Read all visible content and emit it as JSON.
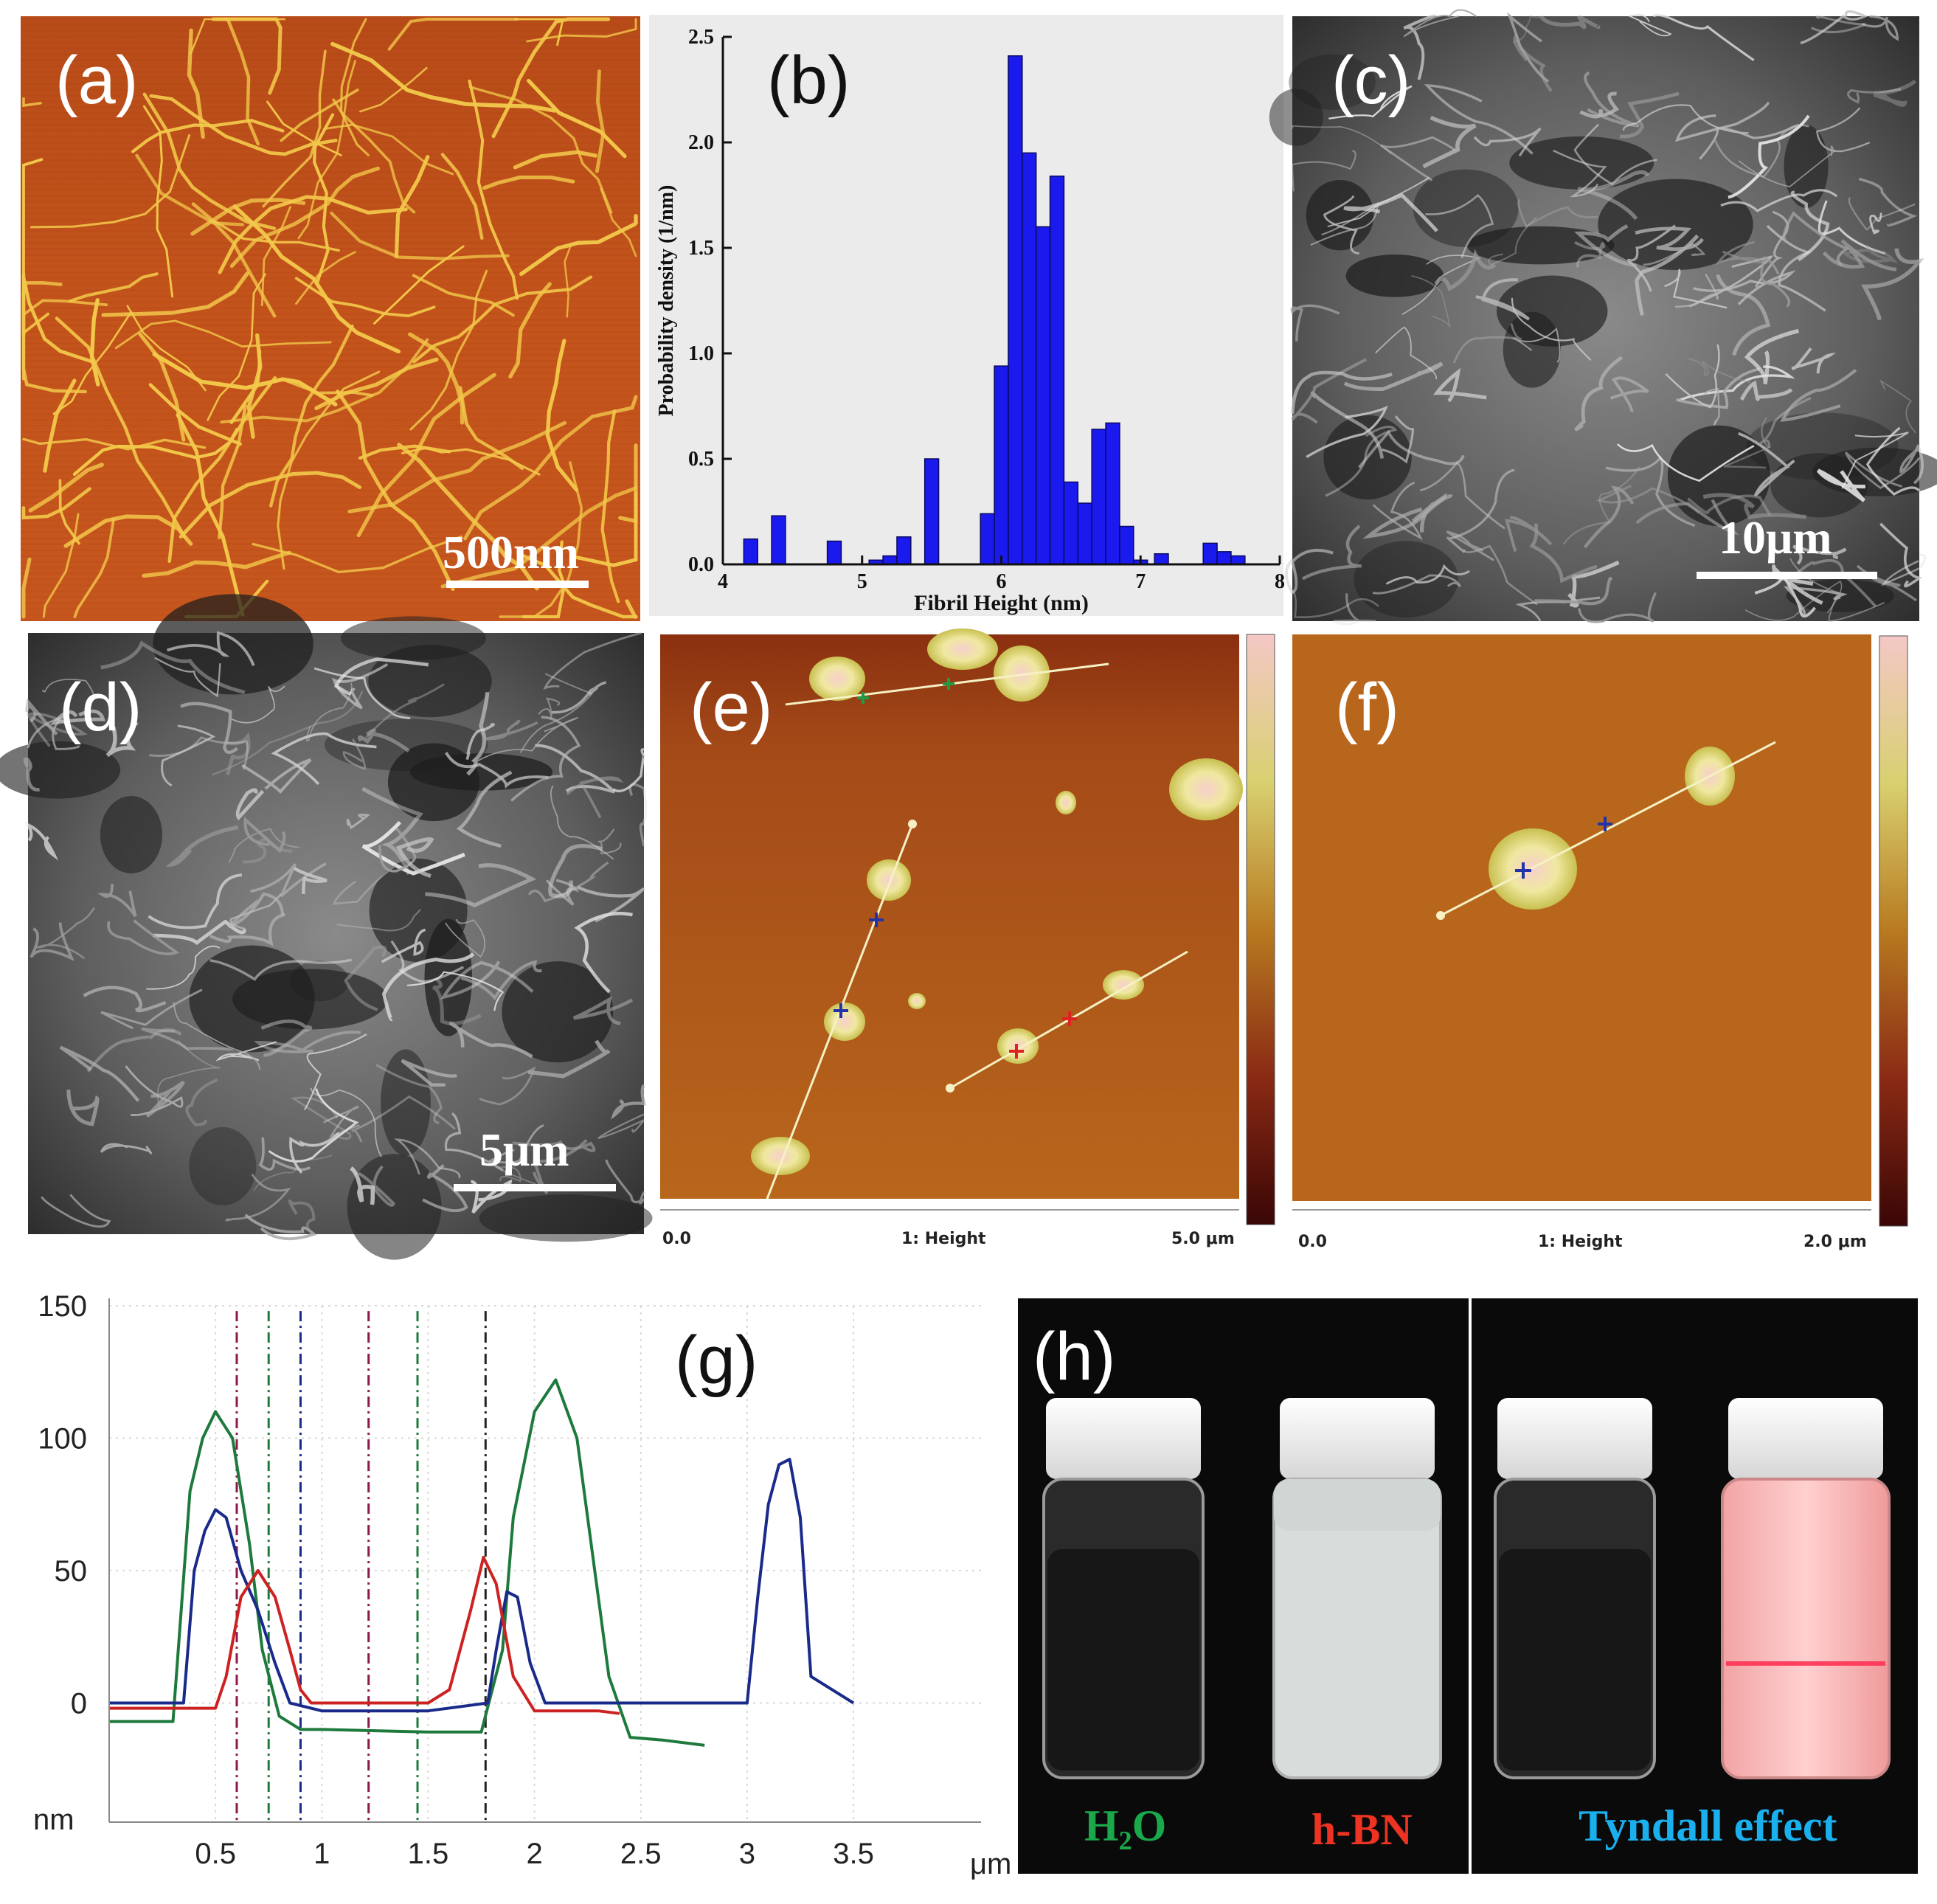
{
  "figure": {
    "panels": {
      "a": {
        "label": "(a)",
        "scalebar": "500nm"
      },
      "b": {
        "label": "(b)"
      },
      "c": {
        "label": "(c)",
        "scalebar": "10μm"
      },
      "d": {
        "label": "(d)",
        "scalebar": "5μm"
      },
      "e": {
        "label": "(e)",
        "axis_start": "0.0",
        "axis_title": "1: Height",
        "axis_end": "5.0 μm"
      },
      "f": {
        "label": "(f)",
        "axis_start": "0.0",
        "axis_title": "1: Height",
        "axis_end": "2.0 μm"
      },
      "g": {
        "label": "(g)"
      },
      "h": {
        "label": "(h)",
        "vial_labels": [
          "H₂O",
          "h-BN",
          "Tyndall effect"
        ]
      }
    },
    "colors": {
      "afm_bg": "#c0501a",
      "fibrils": "#f2c84a",
      "sem_gray": "#6e6e6e",
      "bar_blue": "#1a1aee",
      "afm_height_bg": "#b8661c",
      "flake_yellow": "#e6e873",
      "trace_green": "#1e7a3c",
      "trace_blue": "#1a2a8a",
      "trace_red": "#cc2222",
      "h2o_green": "#1aa84a",
      "hbn_red": "#ee3322",
      "tyndall_blue": "#1ab0ee"
    }
  },
  "chart_data": [
    {
      "panel": "b",
      "type": "bar",
      "xlabel": "Fibril Height (nm)",
      "ylabel": "Probability density (1/nm)",
      "xlim": [
        4,
        8
      ],
      "ylim": [
        0,
        2.5
      ],
      "xticks": [
        "4",
        "5",
        "6",
        "7",
        "8"
      ],
      "yticks": [
        "0.0",
        "0.5",
        "1.0",
        "1.5",
        "2.0",
        "2.5"
      ],
      "bin_width": 0.1,
      "bin_starts": [
        4.15,
        4.35,
        4.75,
        5.05,
        5.15,
        5.25,
        5.45,
        5.85,
        5.95,
        6.05,
        6.15,
        6.25,
        6.35,
        6.45,
        6.55,
        6.65,
        6.75,
        6.85,
        6.95,
        7.1,
        7.45,
        7.55,
        7.65
      ],
      "values": [
        0.12,
        0.23,
        0.11,
        0.02,
        0.04,
        0.13,
        0.5,
        0.24,
        0.94,
        2.41,
        1.95,
        1.6,
        1.84,
        0.39,
        0.29,
        0.64,
        0.67,
        0.18,
        0.02,
        0.05,
        0.1,
        0.06,
        0.04
      ]
    },
    {
      "panel": "g",
      "type": "line",
      "xlabel": "μm",
      "ylabel": "nm",
      "xlim": [
        0,
        4.1
      ],
      "ylim": [
        -45,
        150
      ],
      "xticks": [
        "0.5",
        "1",
        "1.5",
        "2",
        "2.5",
        "3",
        "3.5"
      ],
      "yticks": [
        "150",
        "100",
        "50",
        "0"
      ],
      "series": [
        {
          "color": "green",
          "x": [
            0,
            0.3,
            0.38,
            0.44,
            0.5,
            0.58,
            0.66,
            0.72,
            0.8,
            0.9,
            1.0,
            1.5,
            1.75,
            1.85,
            1.9,
            2.0,
            2.1,
            2.2,
            2.3,
            2.35,
            2.45,
            2.6,
            2.8
          ],
          "y": [
            -7,
            -7,
            80,
            100,
            110,
            100,
            60,
            20,
            -5,
            -10,
            -10,
            -11,
            -11,
            20,
            70,
            110,
            122,
            100,
            40,
            10,
            -13,
            -14,
            -16
          ]
        },
        {
          "color": "blue",
          "x": [
            0,
            0.35,
            0.4,
            0.45,
            0.5,
            0.55,
            0.62,
            0.7,
            0.78,
            0.85,
            1.0,
            1.5,
            1.78,
            1.82,
            1.87,
            1.92,
            1.98,
            2.05,
            2.5,
            3.0,
            3.05,
            3.1,
            3.15,
            3.2,
            3.25,
            3.3,
            3.5
          ],
          "y": [
            0,
            0,
            50,
            65,
            73,
            70,
            50,
            35,
            15,
            0,
            -3,
            -3,
            0,
            20,
            42,
            40,
            15,
            0,
            0,
            0,
            40,
            75,
            90,
            92,
            70,
            10,
            0
          ]
        },
        {
          "color": "red",
          "x": [
            0,
            0.5,
            0.55,
            0.62,
            0.7,
            0.78,
            0.85,
            0.9,
            0.95,
            1.5,
            1.6,
            1.7,
            1.76,
            1.82,
            1.9,
            2.0,
            2.3,
            2.4
          ],
          "y": [
            -2,
            -2,
            10,
            40,
            50,
            40,
            20,
            5,
            0,
            0,
            5,
            35,
            55,
            45,
            10,
            -3,
            -3,
            -4
          ]
        }
      ],
      "markers_x": [
        0.6,
        0.75,
        0.9,
        1.22,
        1.45,
        1.77
      ]
    }
  ]
}
